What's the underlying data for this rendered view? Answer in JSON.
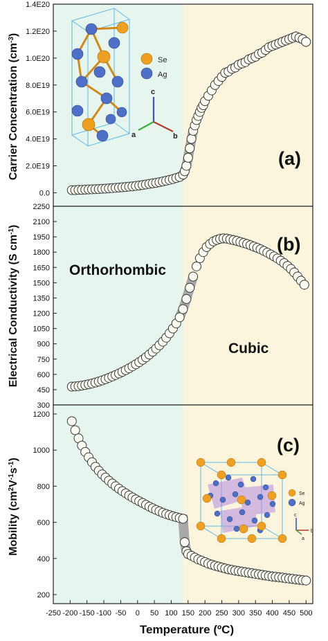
{
  "figure": {
    "xlabel": "Temperature (ºC)",
    "x_ticks": [
      "-250",
      "-200",
      "-150",
      "-100",
      "-50",
      "0",
      "50",
      "100",
      "150",
      "200",
      "250",
      "300",
      "350",
      "400",
      "450",
      "500"
    ],
    "xlim": [
      -250,
      520
    ],
    "transition_temp": 135,
    "region_colors": {
      "ortho": "#e6f6ee",
      "cubic": "#fbf5dd"
    },
    "marker_fill": "#fffef4",
    "marker_stroke": "#3a3a3a",
    "gap_fill": "#a9a9a9"
  },
  "chart_data": [
    {
      "type": "scatter",
      "panel_label": "(a)",
      "ylabel": "Carrier Concentration (cm-3)",
      "ylim": [
        -0.1,
        1.4
      ],
      "y_ticks": [
        {
          "value": 0.0,
          "label": "0.0"
        },
        {
          "value": 0.2,
          "label": "2.0E19"
        },
        {
          "value": 0.4,
          "label": "4.0E19"
        },
        {
          "value": 0.6,
          "label": "6.0E19"
        },
        {
          "value": 0.8,
          "label": "8.0E19"
        },
        {
          "value": 1.0,
          "label": "1.0E20"
        },
        {
          "value": 1.2,
          "label": "1.2E20"
        },
        {
          "value": 1.4,
          "label": "1.4E20"
        }
      ],
      "y_unit_scale": "1E20",
      "series": [
        {
          "x": [
            -195,
            -185,
            -175,
            -165,
            -155,
            -145,
            -135,
            -125,
            -115,
            -105,
            -95,
            -85,
            -75,
            -65,
            -55,
            -45,
            -35,
            -25,
            -15,
            -5,
            5,
            15,
            25,
            35,
            45,
            55,
            65,
            75,
            85,
            95,
            105,
            115,
            125,
            135,
            140,
            145,
            150,
            155,
            160,
            165,
            170,
            175,
            180,
            185,
            190,
            195,
            200,
            210,
            220,
            230,
            240,
            250,
            260,
            270,
            280,
            290,
            300,
            310,
            320,
            330,
            340,
            350,
            360,
            370,
            380,
            390,
            400,
            410,
            420,
            430,
            440,
            450,
            460,
            470,
            480,
            490,
            500
          ],
          "y": [
            0.02,
            0.02,
            0.022,
            0.022,
            0.024,
            0.025,
            0.026,
            0.027,
            0.028,
            0.03,
            0.031,
            0.033,
            0.035,
            0.037,
            0.039,
            0.041,
            0.043,
            0.046,
            0.048,
            0.051,
            0.054,
            0.058,
            0.062,
            0.066,
            0.07,
            0.074,
            0.079,
            0.084,
            0.09,
            0.096,
            0.102,
            0.11,
            0.118,
            0.135,
            0.16,
            0.2,
            0.26,
            0.33,
            0.4,
            0.46,
            0.5,
            0.54,
            0.57,
            0.6,
            0.63,
            0.65,
            0.68,
            0.72,
            0.76,
            0.8,
            0.83,
            0.86,
            0.89,
            0.9,
            0.92,
            0.93,
            0.95,
            0.96,
            0.97,
            0.99,
            1.0,
            1.01,
            1.03,
            1.04,
            1.06,
            1.08,
            1.09,
            1.1,
            1.11,
            1.12,
            1.13,
            1.14,
            1.15,
            1.16,
            1.15,
            1.14,
            1.12
          ]
        }
      ]
    },
    {
      "type": "scatter",
      "panel_label": "(b)",
      "ylabel": "Electrical Conductivity (S cm-1)",
      "ylim": [
        300,
        2250
      ],
      "y_ticks": [
        {
          "value": 300,
          "label": "300"
        },
        {
          "value": 450,
          "label": "450"
        },
        {
          "value": 600,
          "label": "600"
        },
        {
          "value": 750,
          "label": "750"
        },
        {
          "value": 900,
          "label": "900"
        },
        {
          "value": 1050,
          "label": "1050"
        },
        {
          "value": 1200,
          "label": "1200"
        },
        {
          "value": 1350,
          "label": "1350"
        },
        {
          "value": 1500,
          "label": "1500"
        },
        {
          "value": 1650,
          "label": "1650"
        },
        {
          "value": 1800,
          "label": "1800"
        },
        {
          "value": 1950,
          "label": "1950"
        },
        {
          "value": 2100,
          "label": "2100"
        },
        {
          "value": 2250,
          "label": "2250"
        }
      ],
      "series": [
        {
          "x": [
            -195,
            -185,
            -175,
            -165,
            -155,
            -145,
            -135,
            -125,
            -115,
            -105,
            -95,
            -85,
            -75,
            -65,
            -55,
            -45,
            -35,
            -25,
            -15,
            -5,
            5,
            15,
            25,
            35,
            45,
            55,
            65,
            75,
            85,
            95,
            105,
            115,
            125,
            135,
            145,
            155,
            165,
            175,
            185,
            195,
            205,
            215,
            225,
            235,
            245,
            255,
            265,
            275,
            285,
            295,
            305,
            315,
            325,
            335,
            345,
            355,
            365,
            375,
            385,
            395,
            405,
            415,
            425,
            435,
            445,
            455,
            465,
            475,
            485,
            495
          ],
          "y": [
            480,
            482,
            485,
            490,
            496,
            503,
            511,
            520,
            530,
            541,
            553,
            566,
            580,
            594,
            609,
            625,
            642,
            660,
            679,
            699,
            720,
            743,
            768,
            795,
            823,
            853,
            886,
            921,
            960,
            1003,
            1050,
            1100,
            1160,
            1240,
            1340,
            1450,
            1560,
            1660,
            1740,
            1800,
            1850,
            1880,
            1905,
            1920,
            1930,
            1935,
            1932,
            1925,
            1918,
            1910,
            1900,
            1890,
            1880,
            1868,
            1855,
            1842,
            1828,
            1812,
            1795,
            1777,
            1758,
            1738,
            1716,
            1692,
            1665,
            1635,
            1600,
            1560,
            1520,
            1480
          ]
        }
      ],
      "annotations": [
        "Orthorhombic",
        "Cubic"
      ]
    },
    {
      "type": "scatter",
      "panel_label": "(c)",
      "ylabel": "Mobility (cm2V-1s-1)",
      "ylim": [
        150,
        1250
      ],
      "y_ticks": [
        {
          "value": 200,
          "label": "200"
        },
        {
          "value": 400,
          "label": "400"
        },
        {
          "value": 600,
          "label": "600"
        },
        {
          "value": 800,
          "label": "800"
        },
        {
          "value": 1000,
          "label": "1000"
        },
        {
          "value": 1200,
          "label": "1200"
        }
      ],
      "series": [
        {
          "x": [
            -195,
            -185,
            -175,
            -165,
            -155,
            -145,
            -135,
            -125,
            -115,
            -105,
            -95,
            -85,
            -75,
            -65,
            -55,
            -45,
            -35,
            -25,
            -15,
            -5,
            5,
            15,
            25,
            35,
            45,
            55,
            65,
            75,
            85,
            95,
            105,
            115,
            125,
            135,
            140,
            145,
            150,
            160,
            170,
            180,
            190,
            200,
            210,
            220,
            230,
            240,
            250,
            260,
            270,
            280,
            290,
            300,
            310,
            320,
            330,
            340,
            350,
            360,
            370,
            380,
            390,
            400,
            410,
            420,
            430,
            440,
            450,
            460,
            470,
            480,
            490,
            500
          ],
          "y": [
            1160,
            1110,
            1065,
            1025,
            990,
            960,
            933,
            908,
            886,
            866,
            848,
            831,
            815,
            800,
            786,
            773,
            761,
            749,
            738,
            727,
            717,
            707,
            697,
            687,
            678,
            669,
            661,
            653,
            646,
            640,
            634,
            629,
            624,
            620,
            490,
            440,
            425,
            415,
            405,
            395,
            388,
            380,
            372,
            366,
            360,
            355,
            350,
            345,
            340,
            337,
            333,
            330,
            327,
            324,
            321,
            318,
            315,
            312,
            309,
            306,
            303,
            300,
            298,
            296,
            294,
            291,
            289,
            287,
            284,
            282,
            280,
            278
          ]
        }
      ],
      "annotations": []
    }
  ],
  "insets": {
    "a": {
      "legend": [
        {
          "label": "Se",
          "color": "#f0a020"
        },
        {
          "label": "Ag",
          "color": "#4f70c8"
        }
      ],
      "axes": [
        "c",
        "a",
        "b"
      ]
    },
    "c": {
      "legend": [
        {
          "label": "Se",
          "color": "#f0a020"
        },
        {
          "label": "Ag",
          "color": "#4f70c8"
        }
      ],
      "axes": [
        "c",
        "a",
        "b"
      ]
    }
  }
}
